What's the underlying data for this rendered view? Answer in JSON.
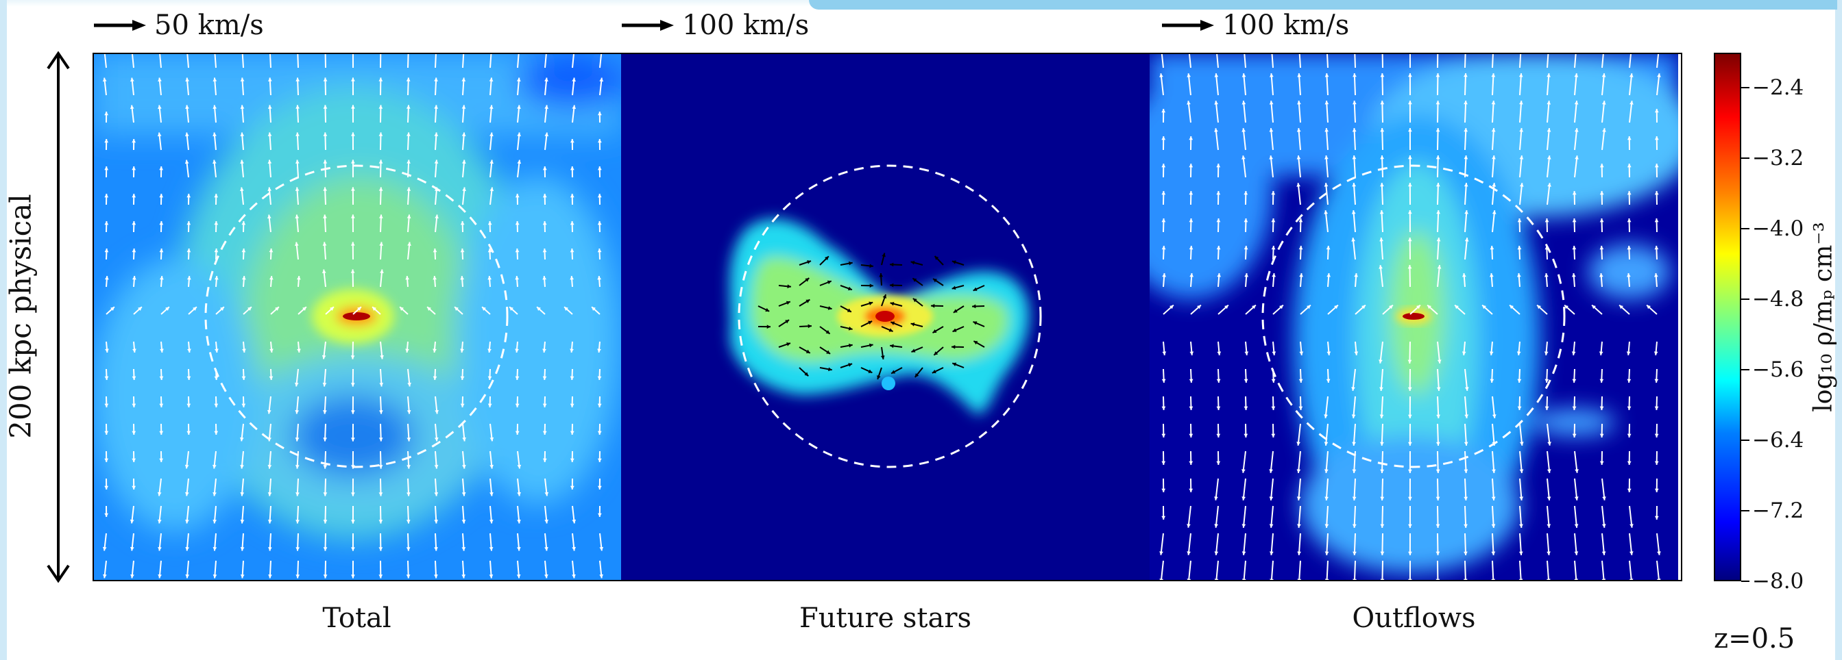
{
  "figure": {
    "velocity_keys": [
      {
        "label": "50 km/s"
      },
      {
        "label": "100 km/s"
      },
      {
        "label": "100 km/s"
      }
    ],
    "panels": [
      {
        "label": "Total"
      },
      {
        "label": "Future stars"
      },
      {
        "label": "Outflows"
      }
    ],
    "scale_bar_label": "200 kpc physical",
    "colorbar": {
      "ticks": [
        "−2.4",
        "−3.2",
        "−4.0",
        "−4.8",
        "−5.6",
        "−6.4",
        "−7.2",
        "−8.0"
      ],
      "range": [
        -8.0,
        -2.0
      ],
      "colormap": "jet"
    },
    "colorbar_title": "log₁₀ ρ/mₚ cm⁻³",
    "redshift": "z=0.5",
    "colors": {
      "background_blue": "#0a1a8f",
      "velocity_arrow_light": "#ffffff",
      "velocity_arrow_dark": "#000000",
      "circle": "#ffffff"
    }
  }
}
